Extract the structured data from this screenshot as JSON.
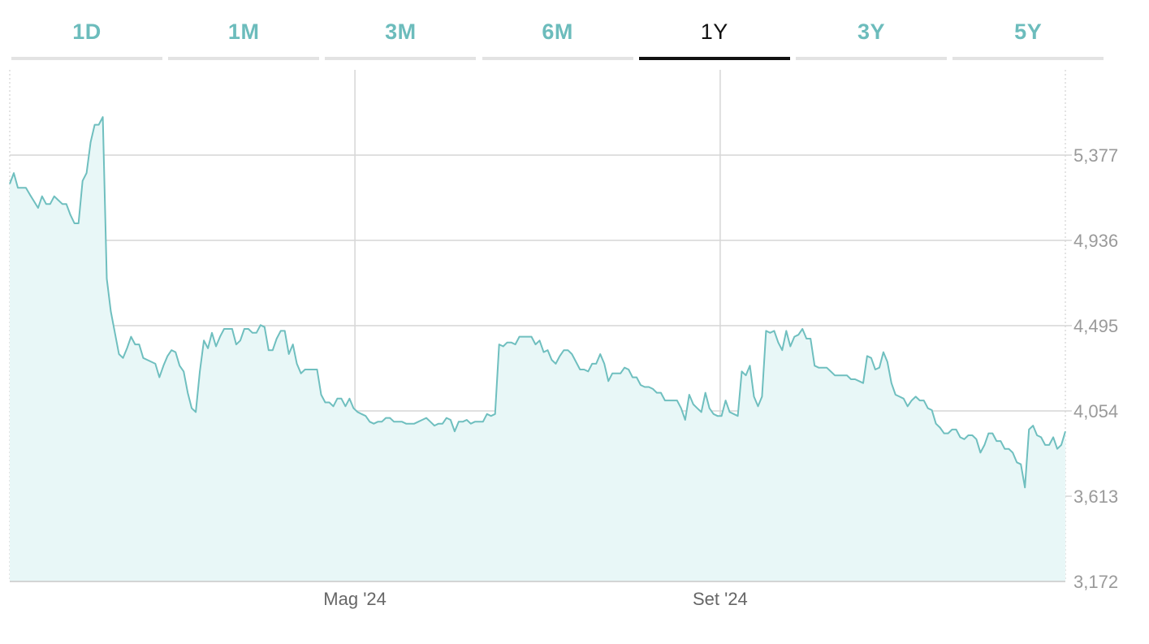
{
  "tabs": [
    {
      "label": "1D",
      "active": false
    },
    {
      "label": "1M",
      "active": false
    },
    {
      "label": "3M",
      "active": false
    },
    {
      "label": "6M",
      "active": false
    },
    {
      "label": "1Y",
      "active": true
    },
    {
      "label": "3Y",
      "active": false
    },
    {
      "label": "5Y",
      "active": false
    }
  ],
  "colors": {
    "line": "#6fbfbf",
    "fill": "#e8f7f7",
    "grid": "#d6d6d6",
    "tab_inactive": "#6cbcbc",
    "tab_active": "#111111"
  },
  "chart_data": {
    "type": "area",
    "title": "",
    "xlabel": "",
    "ylabel": "",
    "ylim": [
      3172,
      5818
    ],
    "yticks": [
      3172,
      3613,
      4054,
      4495,
      4936,
      5377
    ],
    "ytick_labels": [
      "3,172",
      "3,613",
      "4,054",
      "4,495",
      "4,936",
      "5,377"
    ],
    "y_axis_side": "right",
    "grid": true,
    "xlim": [
      0,
      1
    ],
    "xticks": [
      {
        "pos": 0.327,
        "label": "Mag '24"
      },
      {
        "pos": 0.673,
        "label": "Set '24"
      }
    ],
    "series": [
      {
        "values": [
          5228,
          5284,
          5208,
          5208,
          5208,
          5172,
          5138,
          5104,
          5164,
          5124,
          5124,
          5164,
          5144,
          5124,
          5124,
          5068,
          5024,
          5024,
          5244,
          5284,
          5444,
          5534,
          5534,
          5574,
          4738,
          4568,
          4458,
          4348,
          4328,
          4378,
          4438,
          4398,
          4398,
          4328,
          4318,
          4308,
          4298,
          4228,
          4288,
          4338,
          4368,
          4358,
          4288,
          4258,
          4148,
          4068,
          4048,
          4258,
          4418,
          4378,
          4458,
          4388,
          4438,
          4478,
          4478,
          4478,
          4398,
          4418,
          4478,
          4478,
          4458,
          4458,
          4498,
          4488,
          4368,
          4368,
          4428,
          4468,
          4468,
          4348,
          4398,
          4298,
          4248,
          4268,
          4268,
          4268,
          4268,
          4138,
          4098,
          4098,
          4078,
          4118,
          4118,
          4078,
          4118,
          4068,
          4048,
          4038,
          4028,
          3998,
          3988,
          3998,
          3998,
          4018,
          4018,
          3998,
          3998,
          3998,
          3988,
          3988,
          3988,
          3998,
          4008,
          4018,
          3998,
          3978,
          3988,
          3988,
          4018,
          4008,
          3948,
          3998,
          3998,
          4008,
          3988,
          3998,
          3998,
          3998,
          4038,
          4028,
          4038,
          4398,
          4388,
          4408,
          4408,
          4398,
          4438,
          4438,
          4438,
          4438,
          4398,
          4418,
          4358,
          4368,
          4318,
          4298,
          4338,
          4368,
          4368,
          4348,
          4308,
          4268,
          4268,
          4258,
          4298,
          4298,
          4348,
          4298,
          4208,
          4248,
          4248,
          4248,
          4278,
          4268,
          4228,
          4228,
          4188,
          4178,
          4178,
          4168,
          4148,
          4148,
          4108,
          4108,
          4108,
          4108,
          4068,
          4008,
          4138,
          4088,
          4068,
          4048,
          4148,
          4068,
          4038,
          4028,
          4028,
          4108,
          4048,
          4038,
          4028,
          4258,
          4238,
          4288,
          4128,
          4078,
          4128,
          4468,
          4458,
          4468,
          4408,
          4368,
          4468,
          4388,
          4438,
          4448,
          4478,
          4428,
          4428,
          4288,
          4278,
          4278,
          4278,
          4258,
          4238,
          4238,
          4238,
          4238,
          4218,
          4218,
          4208,
          4198,
          4338,
          4328,
          4268,
          4278,
          4358,
          4308,
          4198,
          4138,
          4128,
          4118,
          4078,
          4108,
          4128,
          4108,
          4108,
          4068,
          4058,
          3988,
          3968,
          3938,
          3938,
          3958,
          3958,
          3918,
          3908,
          3928,
          3928,
          3908,
          3838,
          3878,
          3938,
          3938,
          3898,
          3898,
          3858,
          3858,
          3838,
          3788,
          3778,
          3658,
          3958,
          3978,
          3928,
          3918,
          3878,
          3878,
          3918,
          3858,
          3878,
          3948
        ]
      }
    ]
  }
}
